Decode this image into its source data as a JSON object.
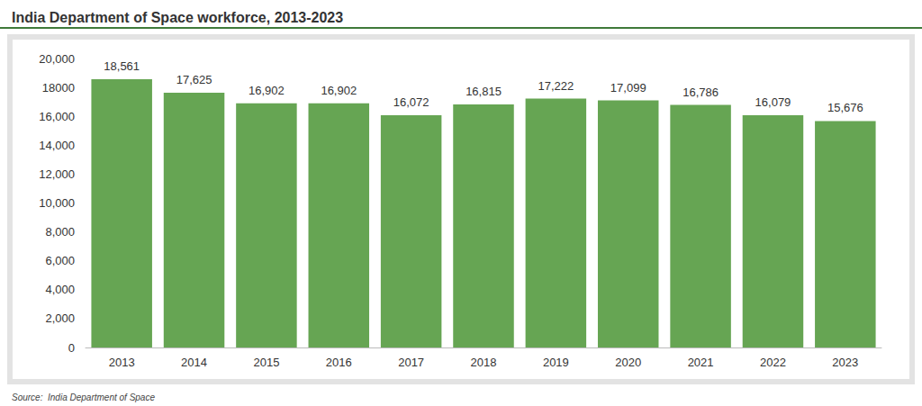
{
  "chart_data": {
    "type": "bar",
    "title": "India Department of Space workforce, 2013-2023",
    "source": "Source:  India Department of Space",
    "categories": [
      "2013",
      "2014",
      "2015",
      "2016",
      "2017",
      "2018",
      "2019",
      "2020",
      "2021",
      "2022",
      "2023"
    ],
    "values": [
      18561,
      17625,
      16902,
      16902,
      16072,
      16815,
      17222,
      17099,
      16786,
      16079,
      15676
    ],
    "value_labels": [
      "18,561",
      "17,625",
      "16,902",
      "16,902",
      "16,072",
      "16,815",
      "17,222",
      "17,099",
      "16,786",
      "16,079",
      "15,676"
    ],
    "color": "#66a553",
    "ylim": [
      0,
      20000
    ],
    "yticks": [
      0,
      {
        "value": 2000,
        "label": "2,000"
      },
      {
        "value": 4000,
        "label": "4,000"
      },
      {
        "value": 6000,
        "label": "6,000"
      },
      {
        "value": 8000,
        "label": "8,000"
      },
      {
        "value": 10000,
        "label": "10,000"
      },
      {
        "value": 12000,
        "label": "12,000"
      },
      {
        "value": 14000,
        "label": "14,000"
      },
      {
        "value": 16000,
        "label": "16,000"
      },
      18000,
      {
        "value": 20000,
        "label": "20,000"
      }
    ],
    "grid": false,
    "data_labels": true
  }
}
